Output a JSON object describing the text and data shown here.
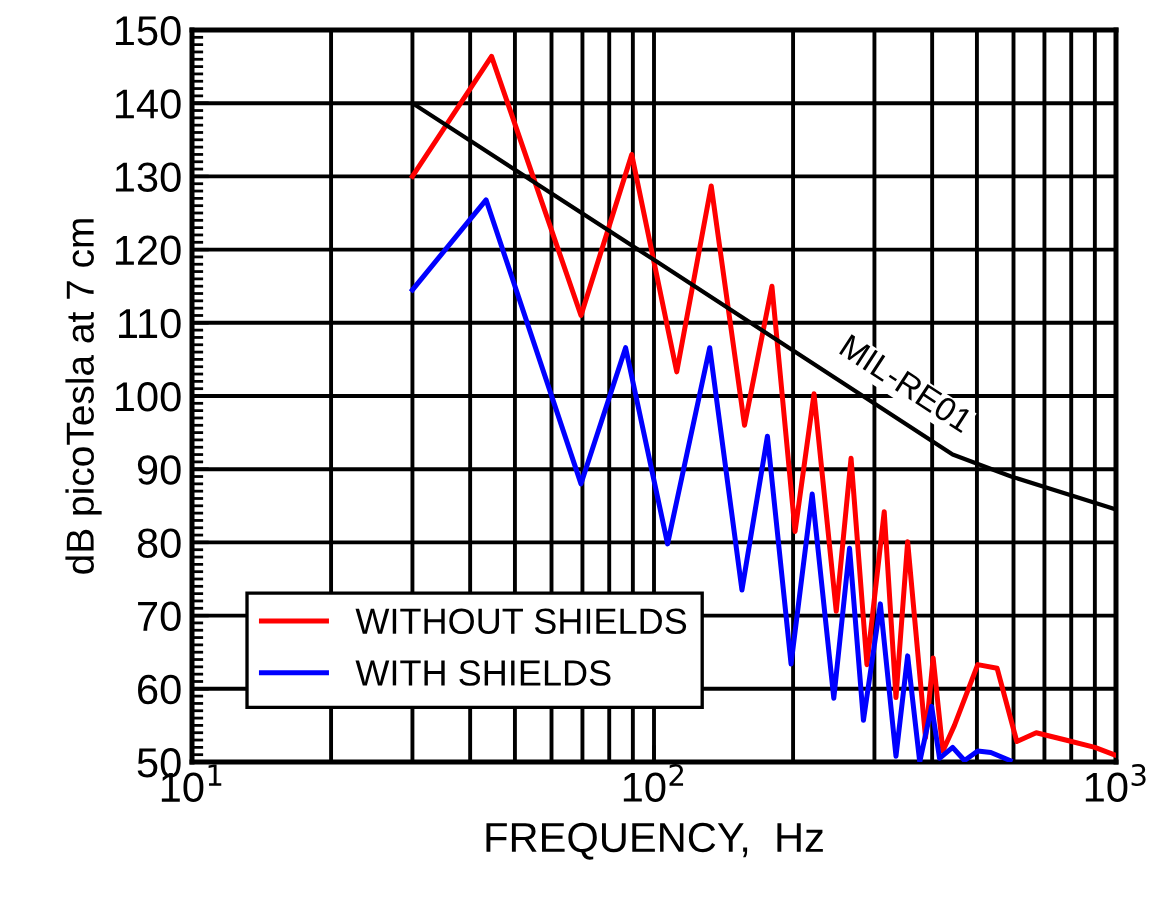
{
  "chart_data": {
    "type": "line",
    "xlabel": "FREQUENCY,  Hz",
    "ylabel": "dB picoTesla at 7 cm",
    "log": "x",
    "grid": true,
    "legend": "bottom left",
    "line_style": "solid",
    "marker": "none",
    "xlim": [
      10,
      1000
    ],
    "xticks": [
      {
        "value": 10,
        "label": "10$^{1}$"
      },
      {
        "value": 100,
        "label": "10$^{2}$"
      },
      {
        "value": 1000,
        "label": "10$^{3}$"
      }
    ],
    "ylim": [
      50,
      150
    ],
    "yticks": [
      50,
      60,
      70,
      80,
      90,
      100,
      110,
      120,
      130,
      140,
      150
    ],
    "series": [
      {
        "name": "WITHOUT SHIELDS",
        "color": "#ff0000",
        "x": [
          30,
          44.5,
          69.5,
          89.5,
          112,
          133,
          157,
          180,
          202,
          222,
          248,
          267,
          289,
          315,
          334,
          354,
          387,
          402,
          422,
          447,
          502,
          553,
          610,
          672,
          778,
          900,
          991
        ],
        "values": [
          130,
          146.4,
          111,
          133,
          103.3,
          128.7,
          96,
          115,
          81.5,
          100.3,
          70.6,
          91.5,
          63.3,
          84.2,
          58.8,
          80.1,
          53.3,
          64.2,
          51.5,
          55,
          63.3,
          62.8,
          52.8,
          54,
          53,
          52,
          51
        ]
      },
      {
        "name": "WITH SHIELDS",
        "color": "#0000ff",
        "x": [
          30,
          43.3,
          69.5,
          86.8,
          107,
          132,
          155,
          176,
          198,
          220,
          245,
          265,
          284,
          309,
          334,
          354,
          376,
          399,
          415,
          443,
          470,
          502,
          536,
          590
        ],
        "values": [
          114.5,
          126.8,
          88,
          106.6,
          79.8,
          106.6,
          73.5,
          94.5,
          63.4,
          86.6,
          58.7,
          79.2,
          55.7,
          71.6,
          50.8,
          64.5,
          50,
          57.6,
          50.5,
          52,
          50.2,
          51.5,
          51.3,
          50.2
        ]
      },
      {
        "color": "#000000",
        "x": [
          30,
          100,
          443,
          593,
          1000
        ],
        "values": [
          140,
          118.6,
          92,
          89,
          84.5
        ]
      }
    ],
    "annotations": [
      {
        "text": "MIL-RE01",
        "x": 325,
        "y": 97.6
      }
    ]
  }
}
